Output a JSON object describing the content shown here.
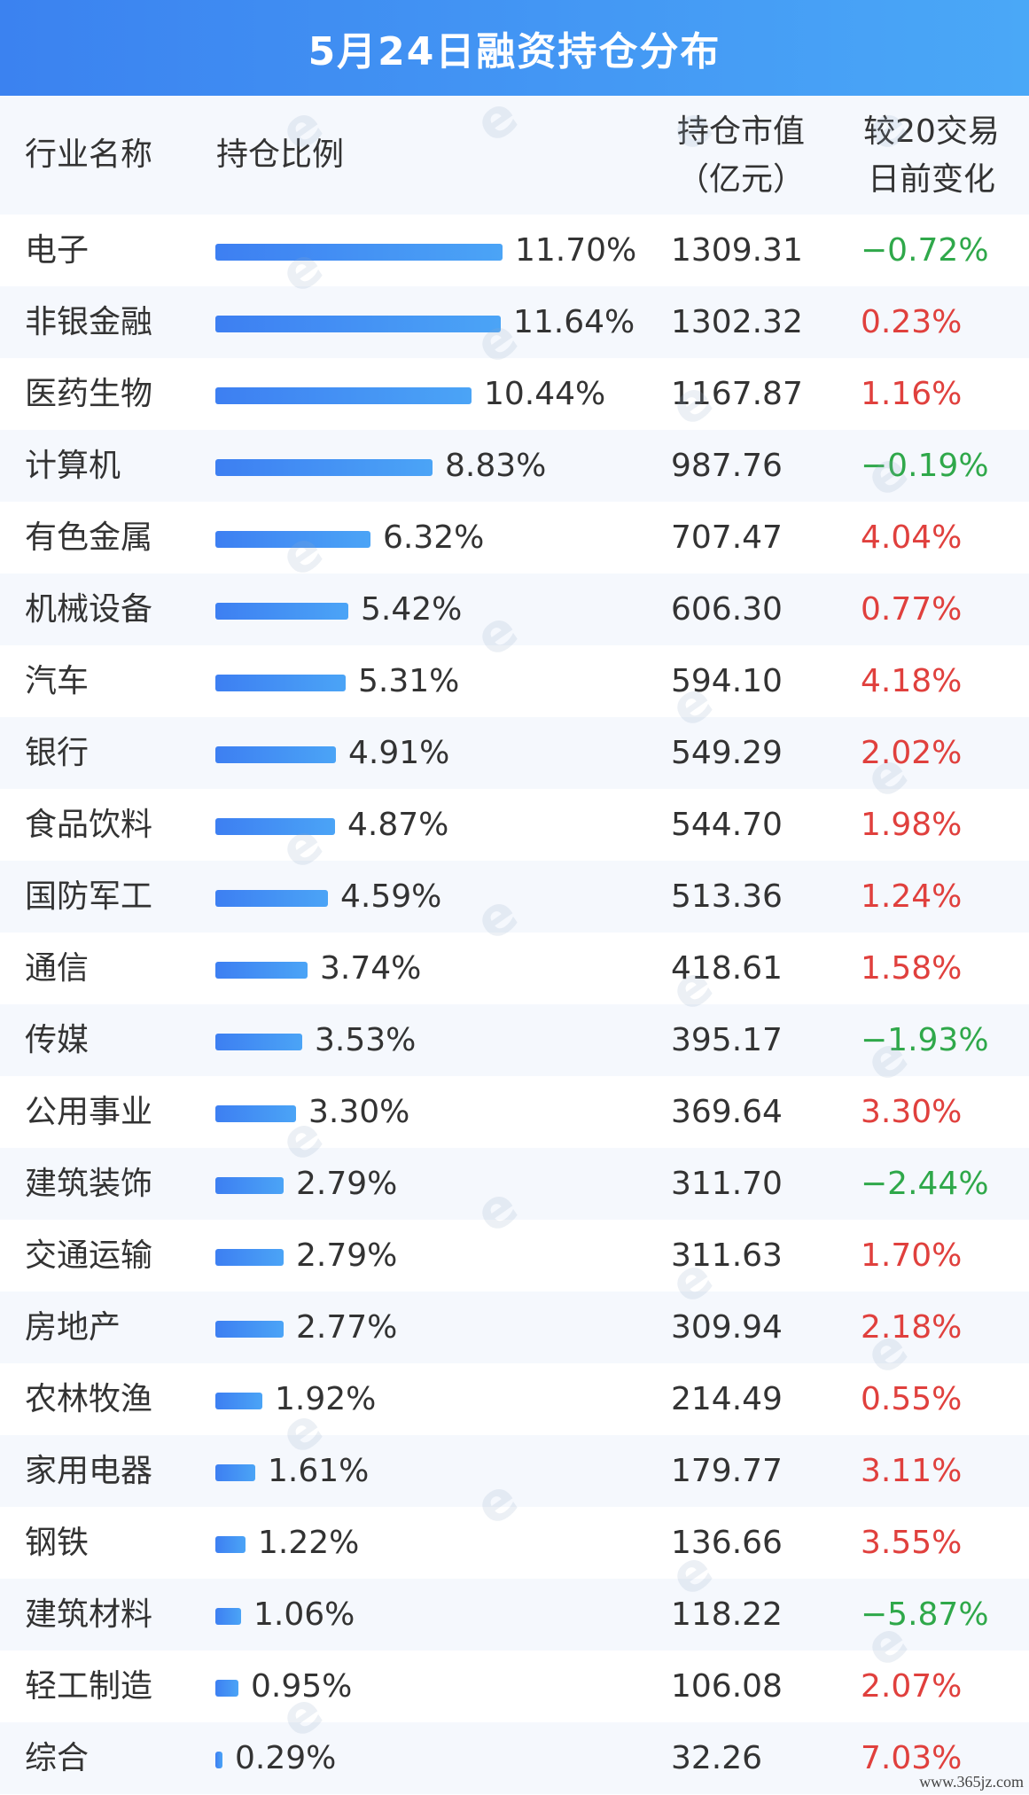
{
  "title": "5月24日融资持仓分布",
  "headers": {
    "industry": "行业名称",
    "share": "持仓比例",
    "value_line1": "持仓市值",
    "value_line2": "（亿元）",
    "change_line1": "较20交易",
    "change_line2": "日前变化"
  },
  "colors": {
    "header_bg": "#3b82f0",
    "bar": "#3d8ef4",
    "positive": "#e0403d",
    "negative": "#2fa84a"
  },
  "chart_data": {
    "type": "table",
    "title": "5月24日融资持仓分布",
    "rows": [
      {
        "industry": "电子",
        "share": 11.7,
        "share_label": "11.70%",
        "value": "1309.31",
        "change": "−0.72%",
        "sign": "neg"
      },
      {
        "industry": "非银金融",
        "share": 11.64,
        "share_label": "11.64%",
        "value": "1302.32",
        "change": "0.23%",
        "sign": "pos"
      },
      {
        "industry": "医药生物",
        "share": 10.44,
        "share_label": "10.44%",
        "value": "1167.87",
        "change": "1.16%",
        "sign": "pos"
      },
      {
        "industry": "计算机",
        "share": 8.83,
        "share_label": "8.83%",
        "value": "987.76",
        "change": "−0.19%",
        "sign": "neg"
      },
      {
        "industry": "有色金属",
        "share": 6.32,
        "share_label": "6.32%",
        "value": "707.47",
        "change": "4.04%",
        "sign": "pos"
      },
      {
        "industry": "机械设备",
        "share": 5.42,
        "share_label": "5.42%",
        "value": "606.30",
        "change": "0.77%",
        "sign": "pos"
      },
      {
        "industry": "汽车",
        "share": 5.31,
        "share_label": "5.31%",
        "value": "594.10",
        "change": "4.18%",
        "sign": "pos"
      },
      {
        "industry": "银行",
        "share": 4.91,
        "share_label": "4.91%",
        "value": "549.29",
        "change": "2.02%",
        "sign": "pos"
      },
      {
        "industry": "食品饮料",
        "share": 4.87,
        "share_label": "4.87%",
        "value": "544.70",
        "change": "1.98%",
        "sign": "pos"
      },
      {
        "industry": "国防军工",
        "share": 4.59,
        "share_label": "4.59%",
        "value": "513.36",
        "change": "1.24%",
        "sign": "pos"
      },
      {
        "industry": "通信",
        "share": 3.74,
        "share_label": "3.74%",
        "value": "418.61",
        "change": "1.58%",
        "sign": "pos"
      },
      {
        "industry": "传媒",
        "share": 3.53,
        "share_label": "3.53%",
        "value": "395.17",
        "change": "−1.93%",
        "sign": "neg"
      },
      {
        "industry": "公用事业",
        "share": 3.3,
        "share_label": "3.30%",
        "value": "369.64",
        "change": "3.30%",
        "sign": "pos"
      },
      {
        "industry": "建筑装饰",
        "share": 2.79,
        "share_label": "2.79%",
        "value": "311.70",
        "change": "−2.44%",
        "sign": "neg"
      },
      {
        "industry": "交通运输",
        "share": 2.79,
        "share_label": "2.79%",
        "value": "311.63",
        "change": "1.70%",
        "sign": "pos"
      },
      {
        "industry": "房地产",
        "share": 2.77,
        "share_label": "2.77%",
        "value": "309.94",
        "change": "2.18%",
        "sign": "pos"
      },
      {
        "industry": "农林牧渔",
        "share": 1.92,
        "share_label": "1.92%",
        "value": "214.49",
        "change": "0.55%",
        "sign": "pos"
      },
      {
        "industry": "家用电器",
        "share": 1.61,
        "share_label": "1.61%",
        "value": "179.77",
        "change": "3.11%",
        "sign": "pos"
      },
      {
        "industry": "钢铁",
        "share": 1.22,
        "share_label": "1.22%",
        "value": "136.66",
        "change": "3.55%",
        "sign": "pos"
      },
      {
        "industry": "建筑材料",
        "share": 1.06,
        "share_label": "1.06%",
        "value": "118.22",
        "change": "−5.87%",
        "sign": "neg"
      },
      {
        "industry": "轻工制造",
        "share": 0.95,
        "share_label": "0.95%",
        "value": "106.08",
        "change": "2.07%",
        "sign": "pos"
      },
      {
        "industry": "综合",
        "share": 0.29,
        "share_label": "0.29%",
        "value": "32.26",
        "change": "7.03%",
        "sign": "pos"
      }
    ]
  },
  "footer": {
    "site": "www.365jz.com"
  }
}
